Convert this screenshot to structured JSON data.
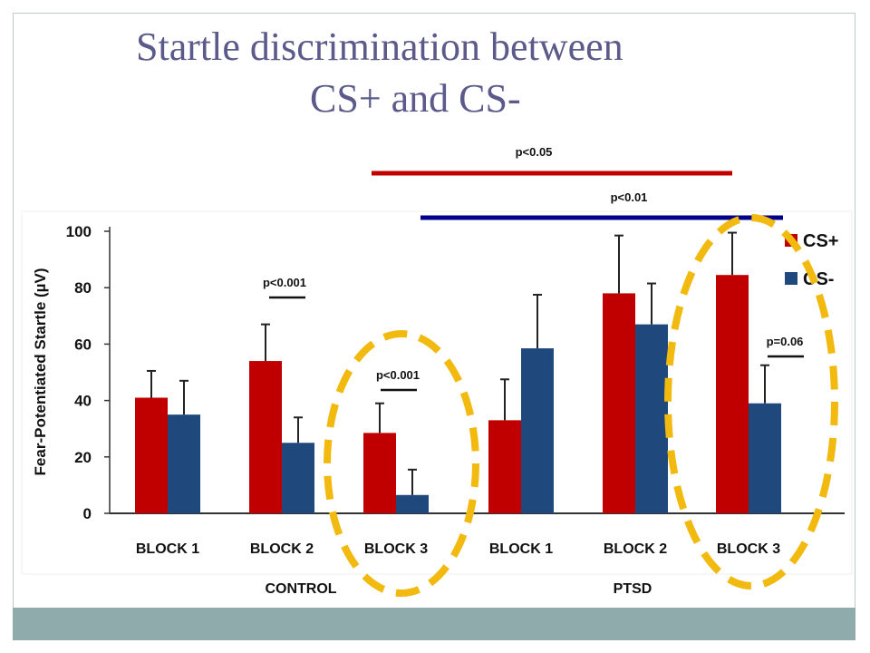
{
  "title": {
    "line1": "Startle discrimination between",
    "line2": "CS+ and CS-"
  },
  "chart_data": {
    "type": "bar",
    "ylabel": "Fear-Potentiated Startle (µV)",
    "ylim": [
      0,
      100
    ],
    "yticks": [
      0,
      20,
      40,
      60,
      80,
      100
    ],
    "categories": [
      "BLOCK 1",
      "BLOCK 2",
      "BLOCK 3",
      "BLOCK 1",
      "BLOCK 2",
      "BLOCK 3"
    ],
    "groups": [
      "CONTROL",
      "PTSD"
    ],
    "series": [
      {
        "name": "CS+",
        "color": "#c00000",
        "values": [
          41,
          54,
          28.5,
          33,
          78,
          84.5
        ],
        "errors": [
          9.5,
          13,
          10.5,
          14.5,
          20.5,
          15
        ]
      },
      {
        "name": "CS-",
        "color": "#1f497d",
        "values": [
          35,
          25,
          6.5,
          58.5,
          67,
          39
        ],
        "errors": [
          12,
          9,
          9,
          19,
          14.5,
          13.5
        ]
      }
    ],
    "legend_position": "top-right",
    "annotations": [
      {
        "text": "p<0.001",
        "block": 2
      },
      {
        "text": "p<0.001",
        "block": 3
      },
      {
        "text": "p=0.06",
        "block": 6
      },
      {
        "text": "p<0.05",
        "span": "BLOCK 3 (CONTROL) to BLOCK 3 (PTSD)",
        "color": "#c00000"
      },
      {
        "text": "p<0.01",
        "span": "BLOCK 1 (PTSD) to BLOCK 3 (PTSD)",
        "color": "#00008b"
      }
    ],
    "highlight_color": "#f2b90f"
  }
}
